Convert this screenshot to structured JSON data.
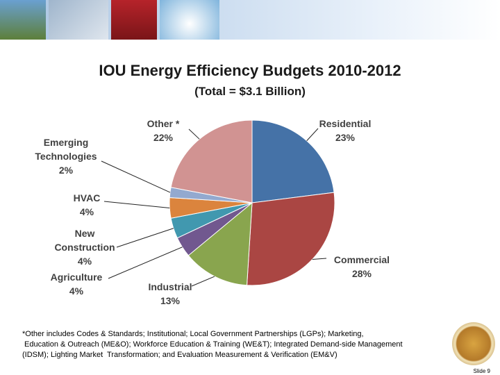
{
  "chart_data": {
    "type": "pie",
    "title": "IOU Energy Efficiency Budgets 2010-2012",
    "subtitle": "(Total = $3.1 Billion)",
    "categories": [
      "Residential",
      "Commercial",
      "Industrial",
      "Agriculture",
      "New Construction",
      "HVAC",
      "Emerging Technologies",
      "Other *"
    ],
    "values": [
      23,
      28,
      13,
      4,
      4,
      4,
      2,
      22
    ],
    "value_labels": [
      "23%",
      "28%",
      "13%",
      "4%",
      "4%",
      "4%",
      "2%",
      "22%"
    ],
    "colors": [
      "#4572a7",
      "#aa4643",
      "#89a54e",
      "#71588f",
      "#4198af",
      "#db843d",
      "#93a9cf",
      "#d19392"
    ]
  },
  "footnote": [
    "*Other includes Codes & Standards; Institutional; Local Government Partnerships (LGPs); Marketing,",
    " Education & Outreach (ME&O); Workforce Education & Training (WE&T); Integrated Demand-side Management",
    "(IDSM); Lighting Market  Transformation; and Evaluation Measurement & Verification (EM&V)"
  ],
  "slide_label": "Slide 9"
}
